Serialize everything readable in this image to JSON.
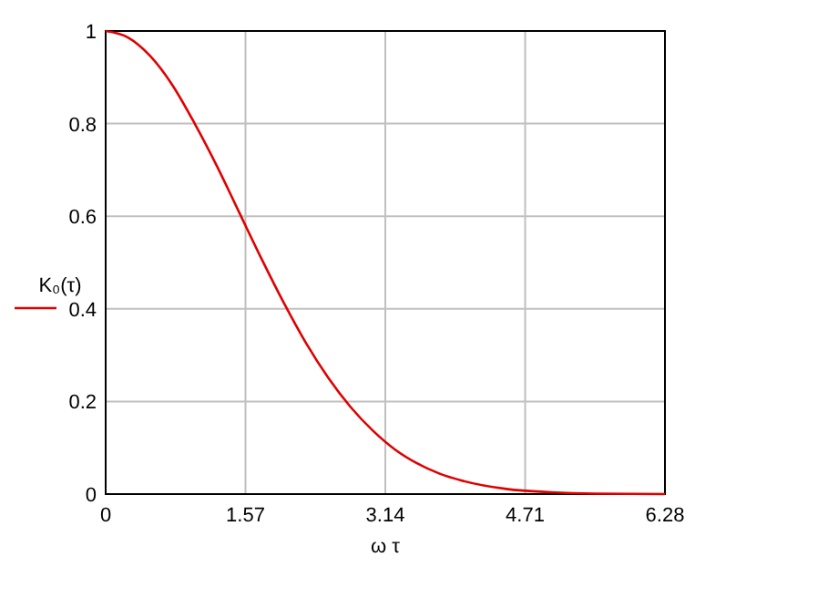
{
  "chart_data": {
    "type": "line",
    "xlabel": "ω τ",
    "ylabel": "K₀(τ)",
    "x": [
      0,
      0.25,
      0.5,
      0.75,
      1,
      1.25,
      1.5,
      1.75,
      2,
      2.25,
      2.5,
      2.75,
      3,
      3.25,
      3.5,
      3.75,
      4,
      4.5,
      5,
      5.5,
      6.28
    ],
    "series": [
      {
        "color": "#e00000",
        "values": [
          1,
          0.986,
          0.946,
          0.883,
          0.8,
          0.708,
          0.608,
          0.508,
          0.413,
          0.326,
          0.251,
          0.188,
          0.137,
          0.096,
          0.066,
          0.044,
          0.029,
          0.011,
          0.004,
          0.001,
          0
        ]
      }
    ],
    "xlim": [
      0,
      6.28
    ],
    "ylim": [
      0,
      1
    ],
    "xticks": [
      0,
      1.57,
      3.14,
      4.71,
      6.28
    ],
    "yticks": [
      0,
      0.2,
      0.4,
      0.6,
      0.8,
      1
    ],
    "grid": true,
    "line_style": "solid"
  }
}
